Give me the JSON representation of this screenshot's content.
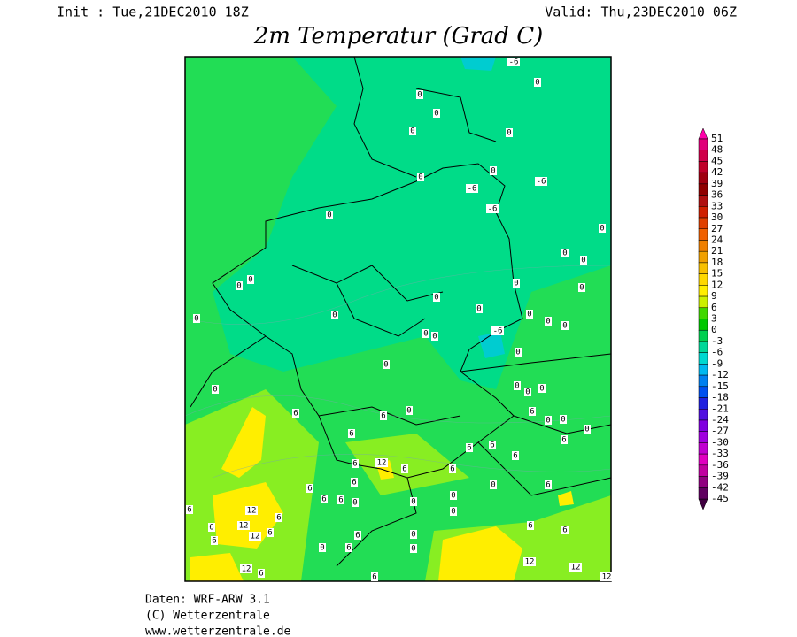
{
  "header": {
    "init": "Init : Tue,21DEC2010 18Z",
    "valid": "Valid: Thu,23DEC2010 06Z",
    "title": "2m Temperatur (Grad C)"
  },
  "footer": {
    "lines": [
      "Daten: WRF-ARW 3.1",
      "(C) Wetterzentrale",
      "www.wetterzentrale.de"
    ]
  },
  "colorbar": {
    "labels": [
      51,
      48,
      45,
      42,
      39,
      36,
      33,
      30,
      27,
      24,
      21,
      18,
      15,
      12,
      9,
      6,
      3,
      0,
      -3,
      -6,
      -9,
      -12,
      -15,
      -18,
      -21,
      -24,
      -27,
      -30,
      -33,
      -36,
      -39,
      -42,
      -45
    ],
    "colors": [
      "#e0007a",
      "#d0004a",
      "#c0002a",
      "#a00010",
      "#900000",
      "#b01010",
      "#d02000",
      "#e04000",
      "#f06000",
      "#f08000",
      "#f0a000",
      "#f8c000",
      "#ffd800",
      "#ffee00",
      "#ccf000",
      "#40d800",
      "#00c800",
      "#00d050",
      "#00d898",
      "#00d8d0",
      "#00b8f0",
      "#0080f0",
      "#0050f0",
      "#2020e0",
      "#5010e0",
      "#8000e0",
      "#a000e0",
      "#c000d0",
      "#e000c0",
      "#c000a0",
      "#900080",
      "#600060"
    ],
    "over_color": "#ff00aa",
    "under_color": "#400040"
  },
  "map": {
    "labels": [
      -6,
      0,
      0,
      0,
      0,
      0,
      0,
      0,
      -6,
      -6,
      -6,
      0,
      0,
      0,
      0,
      0,
      0,
      0,
      0,
      0,
      0,
      0,
      0,
      0,
      0,
      0,
      -6,
      0,
      0,
      0,
      0,
      0,
      0,
      0,
      0,
      0,
      6,
      6,
      6,
      0,
      0,
      0,
      6,
      6,
      6,
      6,
      6,
      12,
      6,
      6,
      6,
      6,
      0,
      6,
      6,
      6,
      6,
      0,
      0,
      0,
      0,
      6,
      12,
      6,
      6,
      12,
      12,
      6,
      6,
      6,
      6,
      0,
      6,
      0,
      6,
      0,
      12,
      12,
      12,
      6,
      6,
      12
    ]
  }
}
